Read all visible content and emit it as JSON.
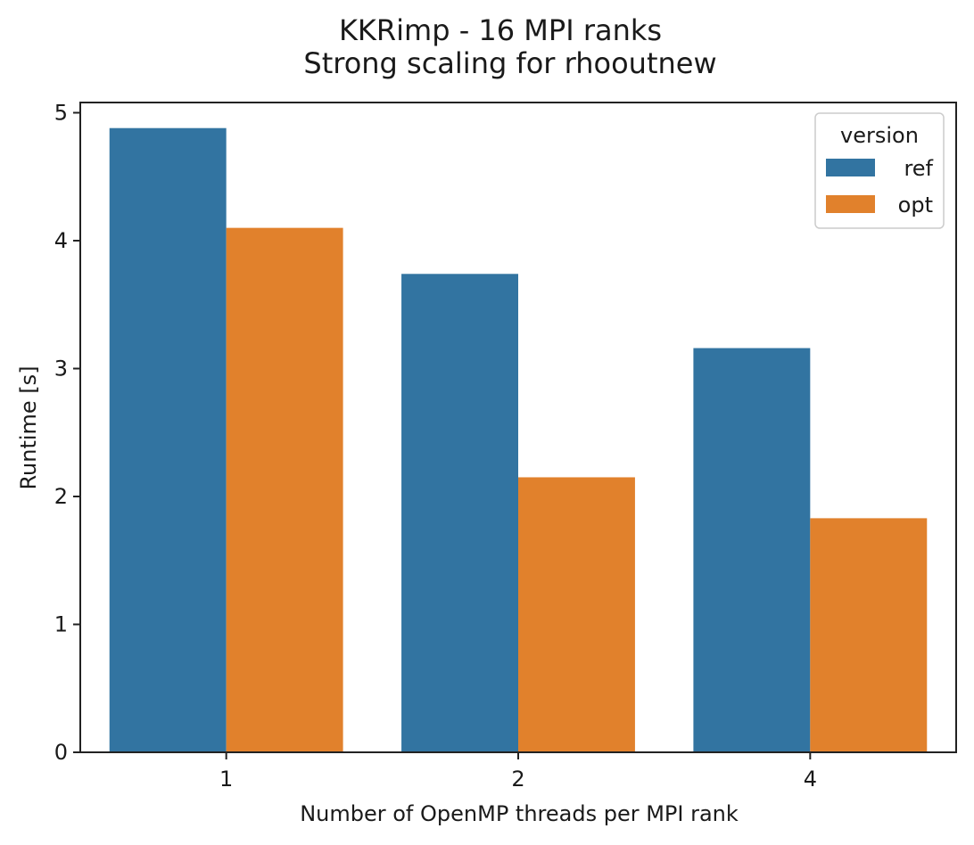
{
  "chart_data": {
    "type": "bar",
    "title": "KKRimp - 16 MPI ranks",
    "subtitle": "Strong scaling for rhooutnew",
    "xlabel": "Number of OpenMP threads per MPI rank",
    "ylabel": "Runtime [s]",
    "categories": [
      "1",
      "2",
      "4"
    ],
    "ylim": [
      0,
      5.08
    ],
    "yticks": [
      "0",
      "1",
      "2",
      "3",
      "4",
      "5"
    ],
    "grid": false,
    "legend": {
      "title": "version",
      "placement": "top-right"
    },
    "series": [
      {
        "name": "ref",
        "color": "#3274a1",
        "values": [
          4.88,
          3.74,
          3.16
        ]
      },
      {
        "name": "opt",
        "color": "#e1812c",
        "values": [
          4.1,
          2.15,
          1.83
        ]
      }
    ]
  }
}
